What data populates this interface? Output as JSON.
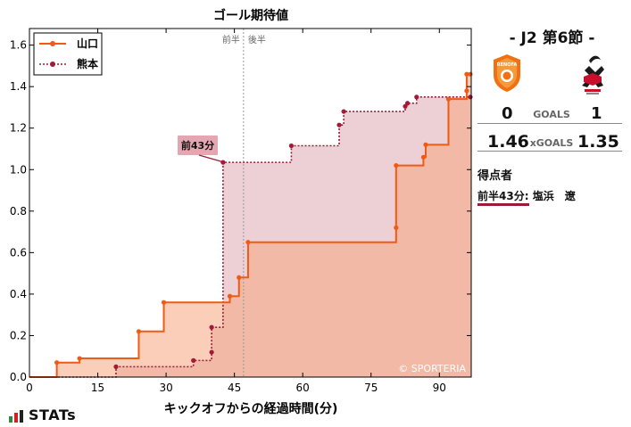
{
  "chart_data": {
    "type": "line",
    "title": "ゴール期待値",
    "xlabel": "キックオフからの経過時間(分)",
    "ylabel": "",
    "xlim": [
      0,
      97
    ],
    "ylim": [
      0,
      1.68
    ],
    "xticks": [
      0,
      15,
      30,
      45,
      60,
      75,
      90
    ],
    "yticks": [
      0.0,
      0.2,
      0.4,
      0.6,
      0.8,
      1.0,
      1.2,
      1.4,
      1.6
    ],
    "ytick_labels": [
      "0.0",
      "0.2",
      "0.4",
      "0.6",
      "0.8",
      "1.0",
      "1.2",
      "1.4",
      "1.6"
    ],
    "half_time": {
      "x": 47,
      "first_half_label": "前半",
      "second_half_label": "後半"
    },
    "legend_position": "top-left",
    "watermark": "© SPORTERIA",
    "series": [
      {
        "name": "山口",
        "color": "#f05a12",
        "fill": "#f7a682",
        "style": "solid",
        "x": [
          6,
          11,
          24,
          29.5,
          44,
          46,
          48,
          80.5,
          80.5,
          86.5,
          87,
          92,
          96,
          96,
          96.8
        ],
        "y": [
          0.07,
          0.09,
          0.22,
          0.36,
          0.39,
          0.48,
          0.65,
          0.72,
          1.02,
          1.06,
          1.12,
          1.34,
          1.38,
          1.46,
          1.46
        ]
      },
      {
        "name": "熊本",
        "color": "#a01b38",
        "fill": "#d9a1ad",
        "style": "dotted",
        "x": [
          19,
          36,
          40,
          40,
          42.5,
          57.5,
          68,
          69,
          82.5,
          83,
          85,
          96.8
        ],
        "y": [
          0.05,
          0.08,
          0.12,
          0.24,
          1.035,
          1.115,
          1.215,
          1.28,
          1.305,
          1.32,
          1.35,
          1.35
        ]
      }
    ],
    "annotations": [
      {
        "text": "前43分",
        "series": "熊本",
        "x": 42.5,
        "y": 1.035
      }
    ]
  },
  "match": {
    "title": "- J2 第6節 -",
    "home_team_logo_text": "RENOFA",
    "home_score": "0",
    "away_score": "1",
    "goals_label": "GOALS",
    "home_xg": "1.46",
    "away_xg": "1.35",
    "xg_label": "xGOALS",
    "scorers_title": "得点者",
    "scorers": [
      {
        "time": "前半43分:",
        "name": "塩浜　遼"
      }
    ],
    "colors": {
      "home": "#f05a12",
      "away": "#a01b38",
      "underline": "#9a1d35"
    }
  },
  "branding": {
    "stats_text": "STATs"
  }
}
